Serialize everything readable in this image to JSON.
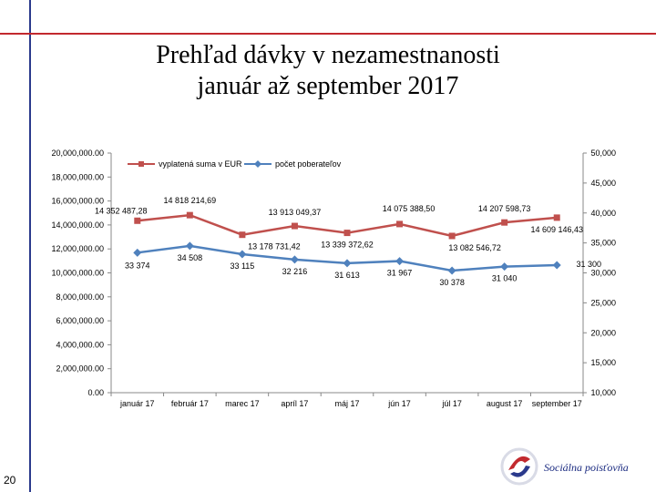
{
  "slide": {
    "title_line1": "Prehľad dávky v nezamestnanosti",
    "title_line2": "január až september 2017",
    "page_number": "20",
    "logo_text": "Sociálna poisťovňa"
  },
  "chart_data": {
    "type": "line",
    "categories": [
      "január 17",
      "február 17",
      "marec 17",
      "apríl 17",
      "máj 17",
      "jún 17",
      "júl 17",
      "august 17",
      "september 17"
    ],
    "series": [
      {
        "name": "vyplatená suma v EUR",
        "axis": "left",
        "color": "#c0504d",
        "marker": "square",
        "values": [
          14352487.28,
          14818214.69,
          13178731.42,
          13913049.37,
          13339372.62,
          14075388.5,
          13082546.72,
          14207598.73,
          14609146.43
        ],
        "labels": [
          "14 352 487,28",
          "14 818 214,69",
          "13 178 731,42",
          "13 913 049,37",
          "13 339 372,62",
          "14 075 388,50",
          "13 082 546,72",
          "14 207 598,73",
          "14 609 146,43"
        ]
      },
      {
        "name": "počet poberateľov",
        "axis": "right",
        "color": "#4f81bd",
        "marker": "diamond",
        "values": [
          33374,
          34508,
          33115,
          32216,
          31613,
          31967,
          30378,
          31040,
          31300
        ],
        "labels": [
          "33 374",
          "34 508",
          "33 115",
          "32 216",
          "31 613",
          "31 967",
          "30 378",
          "31 040",
          "31 300"
        ]
      }
    ],
    "left_axis": {
      "min": 0,
      "max": 20000000,
      "step": 2000000,
      "ticks": [
        "0.00",
        "2,000,000.00",
        "4,000,000.00",
        "6,000,000.00",
        "8,000,000.00",
        "10,000,000.00",
        "12,000,000.00",
        "14,000,000.00",
        "16,000,000.00",
        "18,000,000.00",
        "20,000,000.00"
      ]
    },
    "right_axis": {
      "min": 10000,
      "max": 50000,
      "step": 5000,
      "ticks": [
        "10,000",
        "15,000",
        "20,000",
        "25,000",
        "30,000",
        "35,000",
        "40,000",
        "45,000",
        "50,000"
      ]
    },
    "legend_placement": "top",
    "grid": false
  }
}
